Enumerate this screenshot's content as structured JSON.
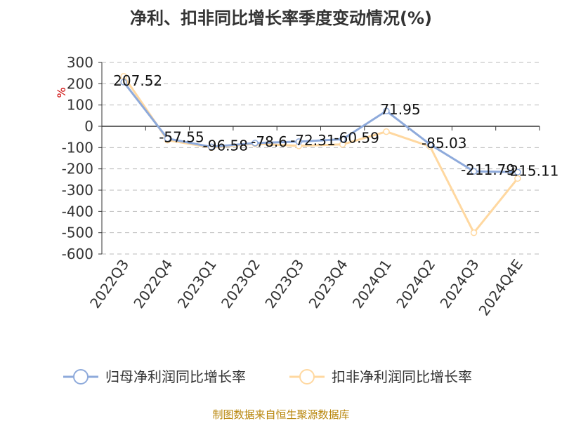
{
  "chart_data": {
    "type": "line",
    "title": "净利、扣非同比增长率季度变动情况(%)",
    "unit_label": "%",
    "categories": [
      "2022Q3",
      "2022Q4",
      "2023Q1",
      "2023Q2",
      "2023Q3",
      "2023Q4",
      "2024Q1",
      "2024Q2",
      "2024Q3",
      "2024Q4E"
    ],
    "ylim": [
      -600,
      300
    ],
    "yticks": [
      300,
      200,
      100,
      0,
      -100,
      -200,
      -300,
      -400,
      -500,
      -600
    ],
    "grid": true,
    "legend_position": "bottom",
    "series": [
      {
        "name": "归母净利润同比增长率",
        "color": "#8eaadb",
        "values": [
          207.52,
          -57.55,
          -96.58,
          -78.6,
          -72.31,
          -60.59,
          71.95,
          -85.03,
          -211.79,
          -215.11
        ],
        "labels": [
          "207.52",
          "-57.55",
          "-96.58",
          "-78.6",
          "-72.31",
          "-60.59",
          "71.95",
          "-85.03",
          "-211.79",
          "-215.11"
        ]
      },
      {
        "name": "扣非净利润同比增长率",
        "color": "#ffd8a0",
        "values": [
          235,
          -65,
          -100,
          -82,
          -92,
          -85,
          -25,
          -95,
          -500,
          -245
        ]
      }
    ]
  },
  "source": "制图数据来自恒生聚源数据库"
}
